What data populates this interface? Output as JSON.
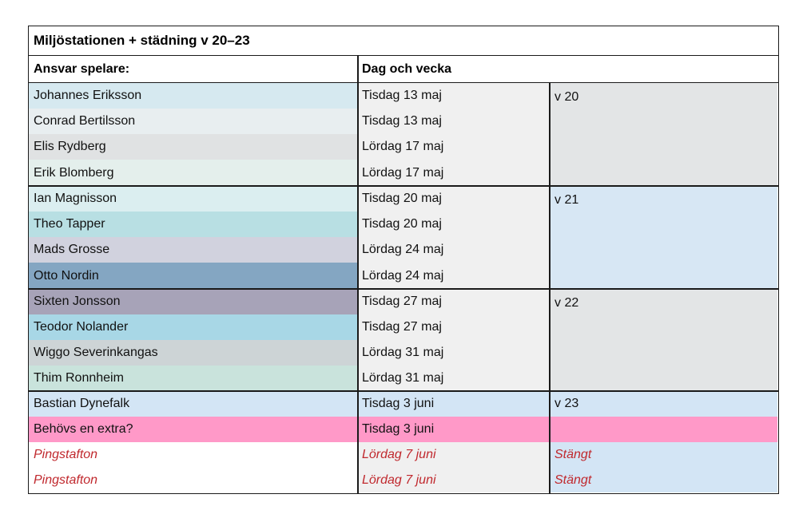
{
  "title": "Miljöstationen + städning v 20–23",
  "headers": {
    "player": "Ansvar spelare:",
    "day": "Dag och vecka"
  },
  "groups": [
    {
      "week": "v 20",
      "week_bg": "#e3e5e6",
      "rows": [
        {
          "name": "Johannes Eriksson",
          "date": "Tisdag 13 maj",
          "name_bg": "#d6e9f0",
          "date_bg": "#f0f0f0"
        },
        {
          "name": "Conrad Bertilsson",
          "date": "Tisdag 13 maj",
          "name_bg": "#e8eef0",
          "date_bg": "#f0f0f0"
        },
        {
          "name": "Elis Rydberg",
          "date": "Lördag 17 maj",
          "name_bg": "#e0e2e3",
          "date_bg": "#f0f0f0"
        },
        {
          "name": "Erik Blomberg",
          "date": "Lördag 17 maj",
          "name_bg": "#e4efec",
          "date_bg": "#f0f0f0"
        }
      ]
    },
    {
      "week": "v 21",
      "week_bg": "#d7e7f4",
      "rows": [
        {
          "name": "Ian Magnisson",
          "date": "Tisdag 20 maj",
          "name_bg": "#dbeef0",
          "date_bg": "#f0f0f0"
        },
        {
          "name": "Theo Tapper",
          "date": "Tisdag 20 maj",
          "name_bg": "#b8dfe3",
          "date_bg": "#f0f0f0"
        },
        {
          "name": "Mads Grosse",
          "date": "Lördag 24 maj",
          "name_bg": "#d1d2de",
          "date_bg": "#f0f0f0"
        },
        {
          "name": "Otto Nordin",
          "date": "Lördag 24 maj",
          "name_bg": "#84a6c2",
          "date_bg": "#f0f0f0"
        }
      ]
    },
    {
      "week": "v 22",
      "week_bg": "#e3e5e6",
      "rows": [
        {
          "name": "Sixten Jonsson",
          "date": "Tisdag 27 maj",
          "name_bg": "#a7a3b8",
          "date_bg": "#f0f0f0"
        },
        {
          "name": "Teodor Nolander",
          "date": "Tisdag 27 maj",
          "name_bg": "#a8d7e6",
          "date_bg": "#f0f0f0"
        },
        {
          "name": "Wiggo Severinkangas",
          "date": "Lördag 31 maj",
          "name_bg": "#cdd4d6",
          "date_bg": "#f0f0f0"
        },
        {
          "name": "Thim Ronnheim",
          "date": "Lördag 31 maj",
          "name_bg": "#c9e3dc",
          "date_bg": "#f0f0f0"
        }
      ]
    }
  ],
  "last_group": {
    "rows": [
      {
        "name": "Bastian Dynefalk",
        "date": "Tisdag 3 juni",
        "week": "v 23",
        "name_bg": "#d3e5f5",
        "date_bg": "#d3e5f5",
        "week_bg": "#d3e5f5",
        "red": false
      },
      {
        "name": "Behövs en extra?",
        "date": "Tisdag 3 juni",
        "week": "",
        "name_bg": "#ff99c8",
        "date_bg": "#ff99c8",
        "week_bg": "#ff99c8",
        "red": false
      },
      {
        "name": "Pingstafton",
        "date": "Lördag 7 juni",
        "week": "Stängt",
        "name_bg": "#ffffff",
        "date_bg": "#f0f0f0",
        "week_bg": "#d3e5f5",
        "red": true
      },
      {
        "name": "Pingstafton",
        "date": "Lördag 7 juni",
        "week": "Stängt",
        "name_bg": "#ffffff",
        "date_bg": "#f0f0f0",
        "week_bg": "#d3e5f5",
        "red": true
      }
    ]
  },
  "colors": {
    "border": "#1a1a1a",
    "closed_text": "#c0282d"
  }
}
